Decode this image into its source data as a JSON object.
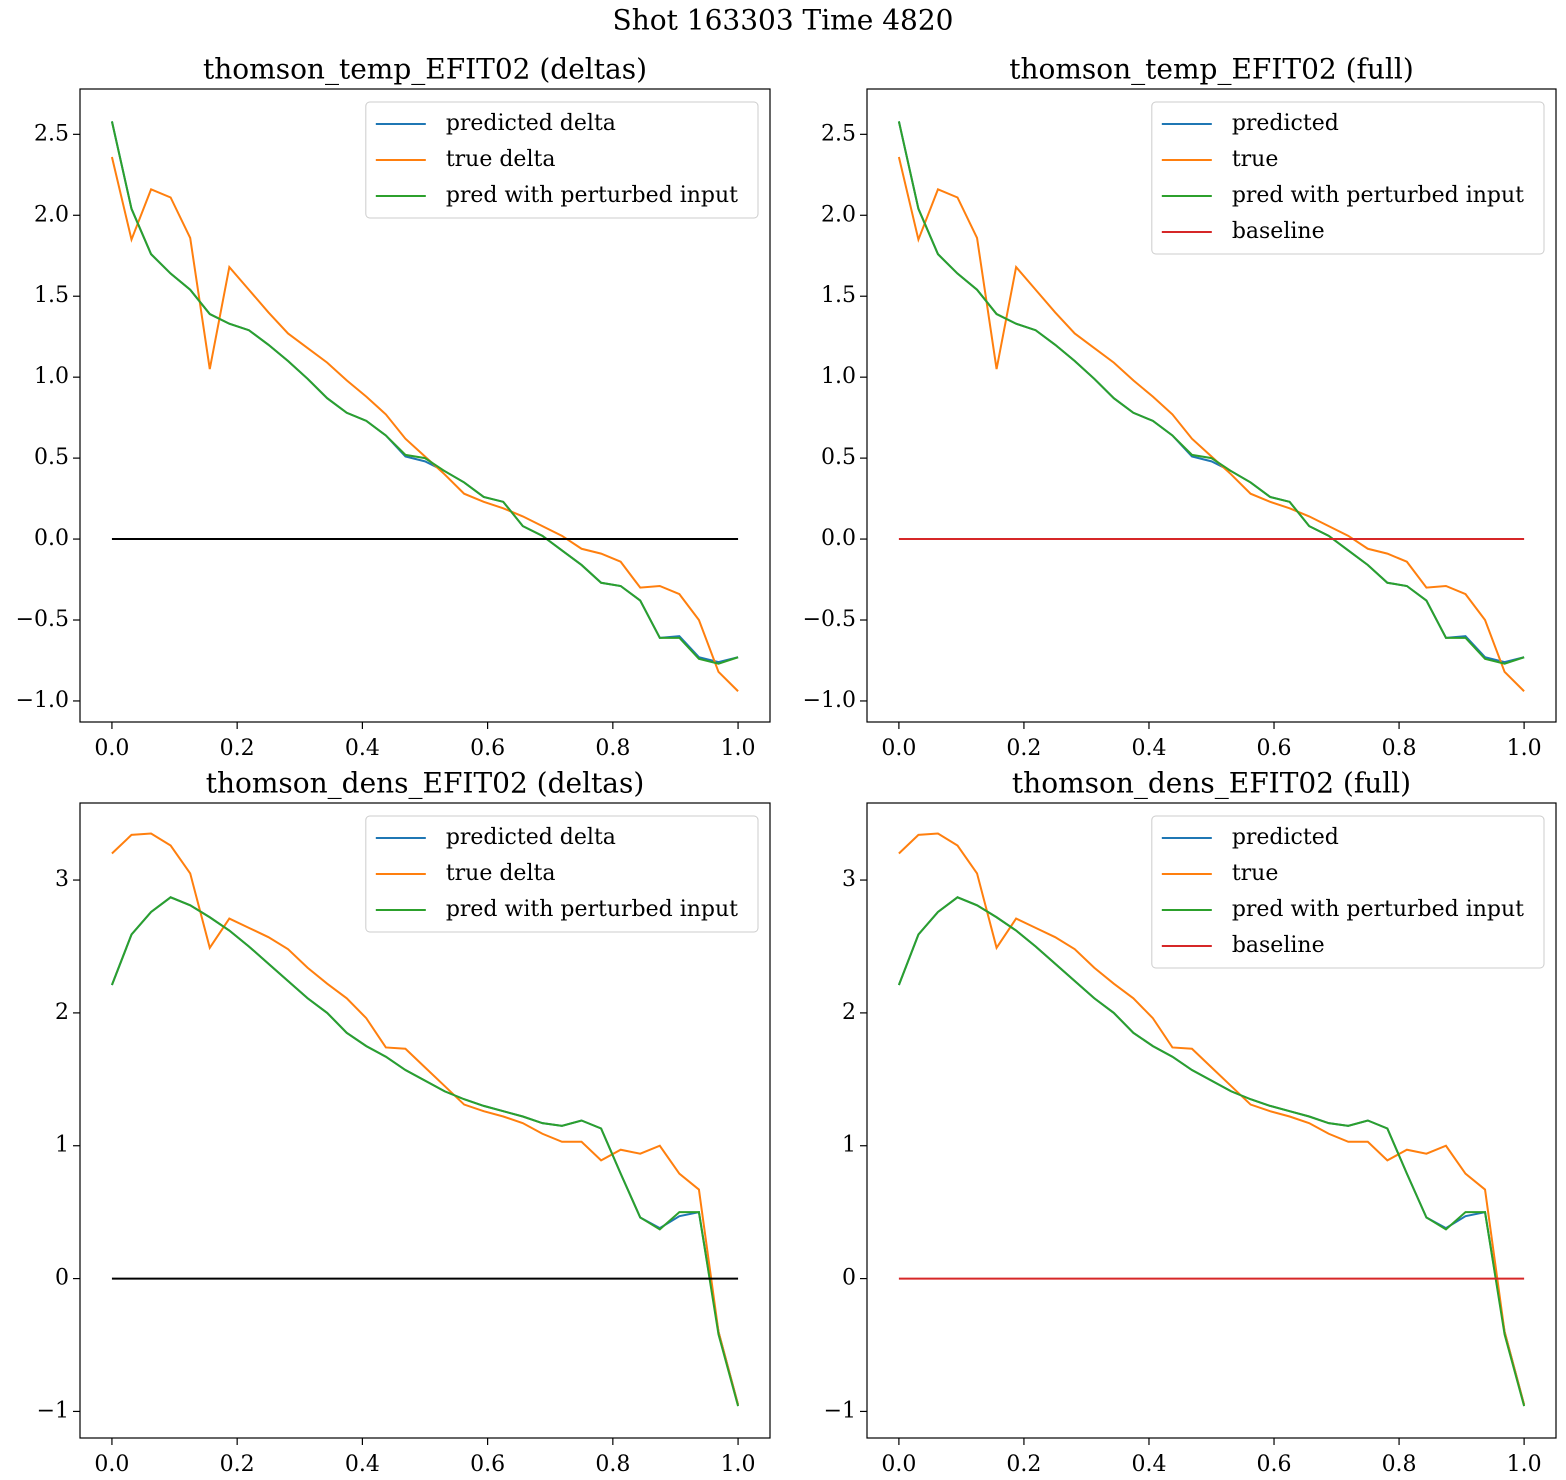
{
  "title": "Shot 163303   Time 4820",
  "chart_data": [
    {
      "type": "line",
      "title": "thomson_temp_EFIT02 (deltas)",
      "x": [
        0,
        0.03125,
        0.0625,
        0.09375,
        0.125,
        0.15625,
        0.1875,
        0.21875,
        0.25,
        0.28125,
        0.3125,
        0.34375,
        0.375,
        0.40625,
        0.4375,
        0.46875,
        0.5,
        0.53125,
        0.5625,
        0.59375,
        0.625,
        0.65625,
        0.6875,
        0.71875,
        0.75,
        0.78125,
        0.8125,
        0.84375,
        0.875,
        0.90625,
        0.9375,
        0.96875,
        1
      ],
      "series": [
        {
          "name": "predicted delta",
          "color": "#1f77b4",
          "values": [
            2.58,
            2.04,
            1.76,
            1.64,
            1.54,
            1.39,
            1.33,
            1.29,
            1.2,
            1.1,
            0.99,
            0.87,
            0.78,
            0.73,
            0.64,
            0.51,
            0.48,
            0.42,
            0.35,
            0.26,
            0.23,
            0.08,
            0.02,
            -0.07,
            -0.16,
            -0.27,
            -0.29,
            -0.38,
            -0.61,
            -0.6,
            -0.73,
            -0.76,
            -0.73
          ]
        },
        {
          "name": "true delta",
          "color": "#ff7f0e",
          "values": [
            2.36,
            1.85,
            2.16,
            2.11,
            1.86,
            1.05,
            1.68,
            1.54,
            1.4,
            1.27,
            1.18,
            1.09,
            0.98,
            0.88,
            0.77,
            0.62,
            0.51,
            0.4,
            0.28,
            0.23,
            0.19,
            0.14,
            0.08,
            0.02,
            -0.06,
            -0.09,
            -0.14,
            -0.3,
            -0.29,
            -0.34,
            -0.5,
            -0.82,
            -0.94
          ]
        },
        {
          "name": "pred with perturbed input",
          "color": "#2ca02c",
          "values": [
            2.58,
            2.04,
            1.76,
            1.64,
            1.54,
            1.39,
            1.33,
            1.29,
            1.2,
            1.1,
            0.99,
            0.87,
            0.78,
            0.73,
            0.64,
            0.52,
            0.5,
            0.42,
            0.35,
            0.26,
            0.23,
            0.08,
            0.02,
            -0.07,
            -0.16,
            -0.27,
            -0.29,
            -0.38,
            -0.61,
            -0.61,
            -0.74,
            -0.77,
            -0.73
          ]
        },
        {
          "color": "#000000",
          "values": [
            0,
            0,
            0,
            0,
            0,
            0,
            0,
            0,
            0,
            0,
            0,
            0,
            0,
            0,
            0,
            0,
            0,
            0,
            0,
            0,
            0,
            0,
            0,
            0,
            0,
            0,
            0,
            0,
            0,
            0,
            0,
            0,
            0
          ]
        }
      ],
      "xlim": [
        -0.051,
        1.051
      ],
      "ylim": [
        -1.13,
        2.78
      ],
      "xticks": [
        {
          "value": 0,
          "label": "0.0"
        },
        0.2,
        0.4,
        0.6,
        0.8,
        {
          "value": 1,
          "label": "1.0"
        }
      ],
      "yticks": [
        {
          "value": -1,
          "label": "−1.0"
        },
        {
          "value": -0.5,
          "label": "−0.5"
        },
        {
          "value": 0,
          "label": "0.0"
        },
        0.5,
        {
          "value": 1,
          "label": "1.0"
        },
        1.5,
        {
          "value": 2,
          "label": "2.0"
        },
        2.5
      ],
      "legend": "upper right"
    },
    {
      "type": "line",
      "title": "thomson_temp_EFIT02 (full)",
      "x": [
        0,
        0.03125,
        0.0625,
        0.09375,
        0.125,
        0.15625,
        0.1875,
        0.21875,
        0.25,
        0.28125,
        0.3125,
        0.34375,
        0.375,
        0.40625,
        0.4375,
        0.46875,
        0.5,
        0.53125,
        0.5625,
        0.59375,
        0.625,
        0.65625,
        0.6875,
        0.71875,
        0.75,
        0.78125,
        0.8125,
        0.84375,
        0.875,
        0.90625,
        0.9375,
        0.96875,
        1
      ],
      "series": [
        {
          "name": "predicted",
          "color": "#1f77b4",
          "values": [
            2.58,
            2.04,
            1.76,
            1.64,
            1.54,
            1.39,
            1.33,
            1.29,
            1.2,
            1.1,
            0.99,
            0.87,
            0.78,
            0.73,
            0.64,
            0.51,
            0.48,
            0.42,
            0.35,
            0.26,
            0.23,
            0.08,
            0.02,
            -0.07,
            -0.16,
            -0.27,
            -0.29,
            -0.38,
            -0.61,
            -0.6,
            -0.73,
            -0.76,
            -0.73
          ]
        },
        {
          "name": "true",
          "color": "#ff7f0e",
          "values": [
            2.36,
            1.85,
            2.16,
            2.11,
            1.86,
            1.05,
            1.68,
            1.54,
            1.4,
            1.27,
            1.18,
            1.09,
            0.98,
            0.88,
            0.77,
            0.62,
            0.51,
            0.4,
            0.28,
            0.23,
            0.19,
            0.14,
            0.08,
            0.02,
            -0.06,
            -0.09,
            -0.14,
            -0.3,
            -0.29,
            -0.34,
            -0.5,
            -0.82,
            -0.94
          ]
        },
        {
          "name": "pred with perturbed input",
          "color": "#2ca02c",
          "values": [
            2.58,
            2.04,
            1.76,
            1.64,
            1.54,
            1.39,
            1.33,
            1.29,
            1.2,
            1.1,
            0.99,
            0.87,
            0.78,
            0.73,
            0.64,
            0.52,
            0.5,
            0.42,
            0.35,
            0.26,
            0.23,
            0.08,
            0.02,
            -0.07,
            -0.16,
            -0.27,
            -0.29,
            -0.38,
            -0.61,
            -0.61,
            -0.74,
            -0.77,
            -0.73
          ]
        },
        {
          "name": "baseline",
          "color": "#d62728",
          "values": [
            0,
            0,
            0,
            0,
            0,
            0,
            0,
            0,
            0,
            0,
            0,
            0,
            0,
            0,
            0,
            0,
            0,
            0,
            0,
            0,
            0,
            0,
            0,
            0,
            0,
            0,
            0,
            0,
            0,
            0,
            0,
            0,
            0
          ]
        }
      ],
      "xlim": [
        -0.051,
        1.051
      ],
      "ylim": [
        -1.13,
        2.78
      ],
      "xticks": [
        {
          "value": 0,
          "label": "0.0"
        },
        0.2,
        0.4,
        0.6,
        0.8,
        {
          "value": 1,
          "label": "1.0"
        }
      ],
      "yticks": [
        {
          "value": -1,
          "label": "−1.0"
        },
        {
          "value": -0.5,
          "label": "−0.5"
        },
        {
          "value": 0,
          "label": "0.0"
        },
        0.5,
        {
          "value": 1,
          "label": "1.0"
        },
        1.5,
        {
          "value": 2,
          "label": "2.0"
        },
        2.5
      ],
      "legend": "upper right"
    },
    {
      "type": "line",
      "title": "thomson_dens_EFIT02 (deltas)",
      "x": [
        0,
        0.03125,
        0.0625,
        0.09375,
        0.125,
        0.15625,
        0.1875,
        0.21875,
        0.25,
        0.28125,
        0.3125,
        0.34375,
        0.375,
        0.40625,
        0.4375,
        0.46875,
        0.5,
        0.53125,
        0.5625,
        0.59375,
        0.625,
        0.65625,
        0.6875,
        0.71875,
        0.75,
        0.78125,
        0.8125,
        0.84375,
        0.875,
        0.90625,
        0.9375,
        0.96875,
        1
      ],
      "series": [
        {
          "name": "predicted delta",
          "color": "#1f77b4",
          "values": [
            2.21,
            2.59,
            2.76,
            2.87,
            2.81,
            2.72,
            2.62,
            2.5,
            2.37,
            2.24,
            2.11,
            2.0,
            1.85,
            1.75,
            1.67,
            1.57,
            1.49,
            1.41,
            1.35,
            1.3,
            1.26,
            1.22,
            1.17,
            1.15,
            1.19,
            1.13,
            0.79,
            0.46,
            0.38,
            0.47,
            0.5,
            -0.4,
            -0.95
          ]
        },
        {
          "name": "true delta",
          "color": "#ff7f0e",
          "values": [
            3.2,
            3.34,
            3.35,
            3.26,
            3.05,
            2.49,
            2.71,
            2.64,
            2.57,
            2.48,
            2.34,
            2.22,
            2.11,
            1.96,
            1.74,
            1.73,
            1.59,
            1.45,
            1.31,
            1.26,
            1.22,
            1.17,
            1.09,
            1.03,
            1.03,
            0.89,
            0.97,
            0.94,
            1.0,
            0.79,
            0.67,
            -0.4,
            -0.95
          ]
        },
        {
          "name": "pred with perturbed input",
          "color": "#2ca02c",
          "values": [
            2.21,
            2.59,
            2.76,
            2.87,
            2.81,
            2.72,
            2.62,
            2.5,
            2.37,
            2.24,
            2.11,
            2.0,
            1.85,
            1.75,
            1.67,
            1.57,
            1.49,
            1.41,
            1.35,
            1.3,
            1.26,
            1.22,
            1.17,
            1.15,
            1.19,
            1.13,
            0.79,
            0.46,
            0.37,
            0.5,
            0.5,
            -0.42,
            -0.96
          ]
        },
        {
          "color": "#000000",
          "values": [
            0,
            0,
            0,
            0,
            0,
            0,
            0,
            0,
            0,
            0,
            0,
            0,
            0,
            0,
            0,
            0,
            0,
            0,
            0,
            0,
            0,
            0,
            0,
            0,
            0,
            0,
            0,
            0,
            0,
            0,
            0,
            0,
            0
          ]
        }
      ],
      "xlim": [
        -0.051,
        1.051
      ],
      "ylim": [
        -1.2,
        3.58
      ],
      "xticks": [
        {
          "value": 0,
          "label": "0.0"
        },
        0.2,
        0.4,
        0.6,
        0.8,
        {
          "value": 1,
          "label": "1.0"
        }
      ],
      "yticks": [
        {
          "value": -1,
          "label": "−1"
        },
        0,
        1,
        2,
        3
      ],
      "legend": "upper right"
    },
    {
      "type": "line",
      "title": "thomson_dens_EFIT02 (full)",
      "x": [
        0,
        0.03125,
        0.0625,
        0.09375,
        0.125,
        0.15625,
        0.1875,
        0.21875,
        0.25,
        0.28125,
        0.3125,
        0.34375,
        0.375,
        0.40625,
        0.4375,
        0.46875,
        0.5,
        0.53125,
        0.5625,
        0.59375,
        0.625,
        0.65625,
        0.6875,
        0.71875,
        0.75,
        0.78125,
        0.8125,
        0.84375,
        0.875,
        0.90625,
        0.9375,
        0.96875,
        1
      ],
      "series": [
        {
          "name": "predicted",
          "color": "#1f77b4",
          "values": [
            2.21,
            2.59,
            2.76,
            2.87,
            2.81,
            2.72,
            2.62,
            2.5,
            2.37,
            2.24,
            2.11,
            2.0,
            1.85,
            1.75,
            1.67,
            1.57,
            1.49,
            1.41,
            1.35,
            1.3,
            1.26,
            1.22,
            1.17,
            1.15,
            1.19,
            1.13,
            0.79,
            0.46,
            0.38,
            0.47,
            0.5,
            -0.4,
            -0.95
          ]
        },
        {
          "name": "true",
          "color": "#ff7f0e",
          "values": [
            3.2,
            3.34,
            3.35,
            3.26,
            3.05,
            2.49,
            2.71,
            2.64,
            2.57,
            2.48,
            2.34,
            2.22,
            2.11,
            1.96,
            1.74,
            1.73,
            1.59,
            1.45,
            1.31,
            1.26,
            1.22,
            1.17,
            1.09,
            1.03,
            1.03,
            0.89,
            0.97,
            0.94,
            1.0,
            0.79,
            0.67,
            -0.4,
            -0.95
          ]
        },
        {
          "name": "pred with perturbed input",
          "color": "#2ca02c",
          "values": [
            2.21,
            2.59,
            2.76,
            2.87,
            2.81,
            2.72,
            2.62,
            2.5,
            2.37,
            2.24,
            2.11,
            2.0,
            1.85,
            1.75,
            1.67,
            1.57,
            1.49,
            1.41,
            1.35,
            1.3,
            1.26,
            1.22,
            1.17,
            1.15,
            1.19,
            1.13,
            0.79,
            0.46,
            0.37,
            0.5,
            0.5,
            -0.42,
            -0.96
          ]
        },
        {
          "name": "baseline",
          "color": "#d62728",
          "values": [
            0,
            0,
            0,
            0,
            0,
            0,
            0,
            0,
            0,
            0,
            0,
            0,
            0,
            0,
            0,
            0,
            0,
            0,
            0,
            0,
            0,
            0,
            0,
            0,
            0,
            0,
            0,
            0,
            0,
            0,
            0,
            0,
            0
          ]
        }
      ],
      "xlim": [
        -0.051,
        1.051
      ],
      "ylim": [
        -1.2,
        3.58
      ],
      "xticks": [
        {
          "value": 0,
          "label": "0.0"
        },
        0.2,
        0.4,
        0.6,
        0.8,
        {
          "value": 1,
          "label": "1.0"
        }
      ],
      "yticks": [
        {
          "value": -1,
          "label": "−1"
        },
        0,
        1,
        2,
        3
      ],
      "legend": "upper right"
    }
  ]
}
